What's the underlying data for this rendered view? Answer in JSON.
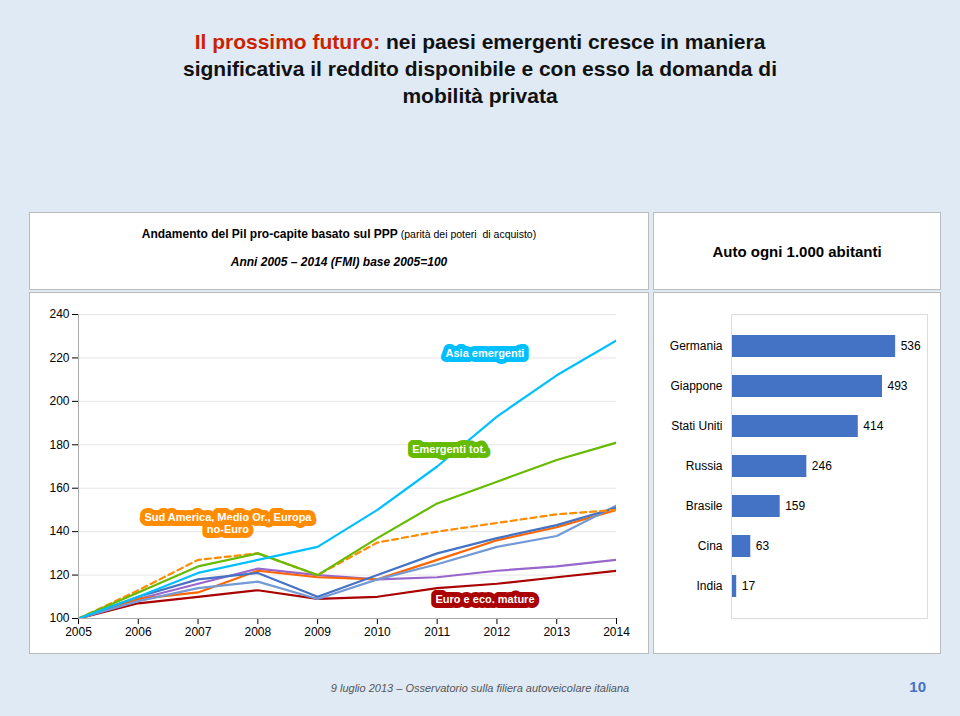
{
  "title": [
    {
      "text": "Il prossimo futuro:",
      "color": "#CC2200"
    },
    {
      "text": "nei paesi emergenti cresce in maniera",
      "color": "#111111"
    },
    {
      "text": "significativa il reddito disponibile e con esso la domanda di",
      "color": "#111111"
    },
    {
      "text": "mobilità privata",
      "color": "#111111"
    }
  ],
  "footer": "9 luglio 2013 – Osservatorio sulla filiera autoveicolare italiana",
  "page_number": "10",
  "chart_data": [
    {
      "type": "line",
      "subtitle": [
        "Andamento del Pil pro-capite basato sul PPP",
        "(parità dei poteri  di acquisto)",
        "Anni 2005 – 2014 (FMI) base 2005=100"
      ],
      "x": [
        2005,
        2006,
        2007,
        2008,
        2009,
        2010,
        2011,
        2012,
        2013,
        2014
      ],
      "series": [
        {
          "color": "#00BFFF",
          "line_style": "solid",
          "values": [
            100,
            110,
            121,
            127,
            133,
            150,
            170,
            193,
            212,
            228
          ]
        },
        {
          "color": "#66BB00",
          "line_style": "solid",
          "values": [
            100,
            112,
            124,
            130,
            120,
            137,
            153,
            163,
            173,
            181
          ]
        },
        {
          "color": "#FF8C00",
          "line_style": "dashed",
          "values": [
            100,
            113,
            127,
            130,
            120,
            135,
            140,
            144,
            148,
            150
          ]
        },
        {
          "color": "#4472C4",
          "line_style": "solid",
          "values": [
            100,
            110,
            118,
            121,
            110,
            120,
            130,
            137,
            143,
            151
          ]
        },
        {
          "color": "#7399D6",
          "line_style": "solid",
          "values": [
            100,
            108,
            114,
            117,
            109,
            118,
            125,
            133,
            138,
            152
          ]
        },
        {
          "color": "#FF6600",
          "line_style": "solid",
          "values": [
            100,
            109,
            112,
            122,
            119,
            118,
            127,
            136,
            142,
            150
          ]
        },
        {
          "color": "#9966CC",
          "line_style": "solid",
          "values": [
            100,
            109,
            116,
            123,
            120,
            118,
            119,
            122,
            124,
            127
          ]
        },
        {
          "color": "#AA0000",
          "line_style": "solid",
          "values": [
            100,
            107,
            110,
            113,
            109,
            110,
            114,
            116,
            119,
            122
          ]
        }
      ],
      "xlim": [
        2005,
        2014
      ],
      "xticks": [
        2005,
        2006,
        2007,
        2008,
        2009,
        2010,
        2011,
        2012,
        2013,
        2014
      ],
      "ylim": [
        100,
        240
      ],
      "yticks": [
        100,
        120,
        140,
        160,
        180,
        200,
        220,
        240
      ],
      "grid": true,
      "annotations": [
        {
          "text": "Asia emergenti",
          "x": 2011.8,
          "y": 222,
          "color": "#00BFFF"
        },
        {
          "text": "Emergenti tot.",
          "x": 2011.2,
          "y": 178,
          "color": "#66BB00"
        },
        {
          "text": "Sud America, Medio Or., Europa\nno-Euro",
          "x": 2007.5,
          "y": 144,
          "color": "#FF8C00"
        },
        {
          "text": "Euro e eco. mature",
          "x": 2011.8,
          "y": 109,
          "color": "#AA0000"
        }
      ]
    },
    {
      "type": "bar",
      "orientation": "horizontal",
      "subtitle": [
        "Auto ogni 1.000 abitanti"
      ],
      "categories": [
        "Germania",
        "Giappone",
        "Stati Uniti",
        "Russia",
        "Brasile",
        "Cina",
        "India"
      ],
      "values": [
        536,
        493,
        414,
        246,
        159,
        63,
        17
      ],
      "color": "#4472C4",
      "xlim": [
        0,
        640
      ],
      "data_labels": true,
      "tick_labels": "y",
      "grid": false
    }
  ]
}
